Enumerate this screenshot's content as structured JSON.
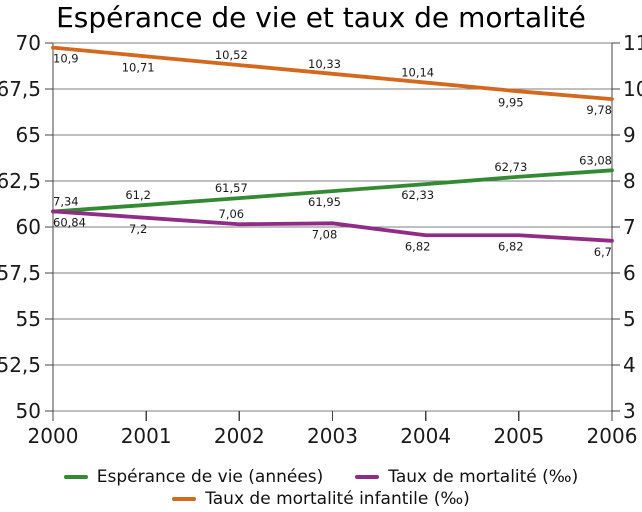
{
  "title": "Espérance de vie et taux de mortalité",
  "chart_data": {
    "type": "line",
    "title": "Espérance de vie et taux de mortalité",
    "x_categories": [
      "2000",
      "2001",
      "2002",
      "2003",
      "2004",
      "2005",
      "2006"
    ],
    "grid": true,
    "legend_position": "bottom",
    "left_axis": {
      "min": 50,
      "max": 70,
      "ticks": [
        {
          "v": 50,
          "label": "50"
        },
        {
          "v": 52.5,
          "label": "52,5"
        },
        {
          "v": 55,
          "label": "55"
        },
        {
          "v": 57.5,
          "label": "57,5"
        },
        {
          "v": 60,
          "label": "60"
        },
        {
          "v": 62.5,
          "label": "62,5"
        },
        {
          "v": 65,
          "label": "65"
        },
        {
          "v": 67.5,
          "label": "67,5"
        },
        {
          "v": 70,
          "label": "70"
        }
      ]
    },
    "right_axis": {
      "min": 3,
      "max": 11,
      "ticks": [
        {
          "v": 3,
          "label": "3"
        },
        {
          "v": 4,
          "label": "4"
        },
        {
          "v": 5,
          "label": "5"
        },
        {
          "v": 6,
          "label": "6"
        },
        {
          "v": 7,
          "label": "7"
        },
        {
          "v": 8,
          "label": "8"
        },
        {
          "v": 9,
          "label": "9"
        },
        {
          "v": 10,
          "label": "10"
        },
        {
          "v": 11,
          "label": "11"
        }
      ]
    },
    "series": [
      {
        "name": "Espérance de vie (années)",
        "color": "#338A33",
        "axis": "left",
        "values": [
          60.84,
          61.2,
          61.57,
          61.95,
          62.33,
          62.73,
          63.08
        ],
        "labels": [
          "60,84",
          "61,2",
          "61,57",
          "61,95",
          "62,33",
          "62,73",
          "63,08"
        ],
        "label_pos": [
          "below",
          "above",
          "above",
          "below",
          "below",
          "above",
          "above"
        ]
      },
      {
        "name": "Taux de mortalité (‰)",
        "color": "#8F2D86",
        "axis": "right",
        "values": [
          7.34,
          7.2,
          7.06,
          7.08,
          6.82,
          6.82,
          6.7
        ],
        "labels": [
          "7,34",
          "7,2",
          "7,06",
          "7,08",
          "6,82",
          "6,82",
          "6,7"
        ],
        "label_pos": [
          "above",
          "below",
          "above",
          "below",
          "below",
          "below",
          "below"
        ]
      },
      {
        "name": "Taux de mortalité infantile (‰)",
        "color": "#D2691E",
        "axis": "right",
        "values": [
          10.9,
          10.71,
          10.52,
          10.33,
          10.14,
          9.95,
          9.78
        ],
        "labels": [
          "10,9",
          "10,71",
          "10,52",
          "10,33",
          "10,14",
          "9,95",
          "9,78"
        ],
        "label_pos": [
          "below",
          "below",
          "above",
          "above",
          "above",
          "below",
          "below"
        ]
      }
    ]
  }
}
